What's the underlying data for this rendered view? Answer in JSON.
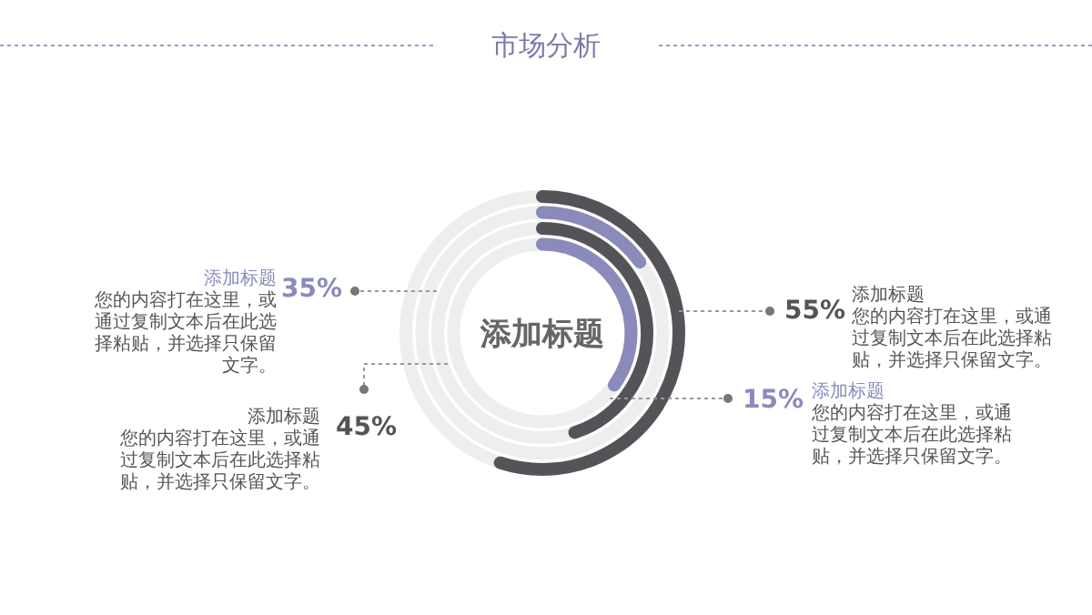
{
  "chart_data": {
    "type": "other",
    "title": "市场分析",
    "series": [
      {
        "name": "添加标题",
        "color": "#545458",
        "values": [
          55
        ],
        "value_labels": [
          "55%"
        ]
      },
      {
        "name": "添加标题",
        "color": "#8a8abb",
        "values": [
          15
        ],
        "value_labels": [
          "15%"
        ]
      },
      {
        "name": "添加标题",
        "color": "#545458",
        "values": [
          45
        ],
        "value_labels": [
          "45%"
        ]
      },
      {
        "name": "添加标题",
        "color": "#8a8abb",
        "values": [
          35
        ],
        "value_labels": [
          "35%"
        ]
      }
    ],
    "annotations": [
      "添加标题",
      "您的内容打在这里，或通过复制文本后在此选择粘贴，并选择只保留文字。",
      "您的内容打在这里，或通过复制文本后在此选择粘贴，并选择只保留文字。",
      "您的内容打在这里，或通过复制文本后在此选择粘贴，并选择只保留文字。",
      "您的内容打在这里，或通过复制文本后在此选择粘贴，并选择只保留文字。"
    ]
  }
}
